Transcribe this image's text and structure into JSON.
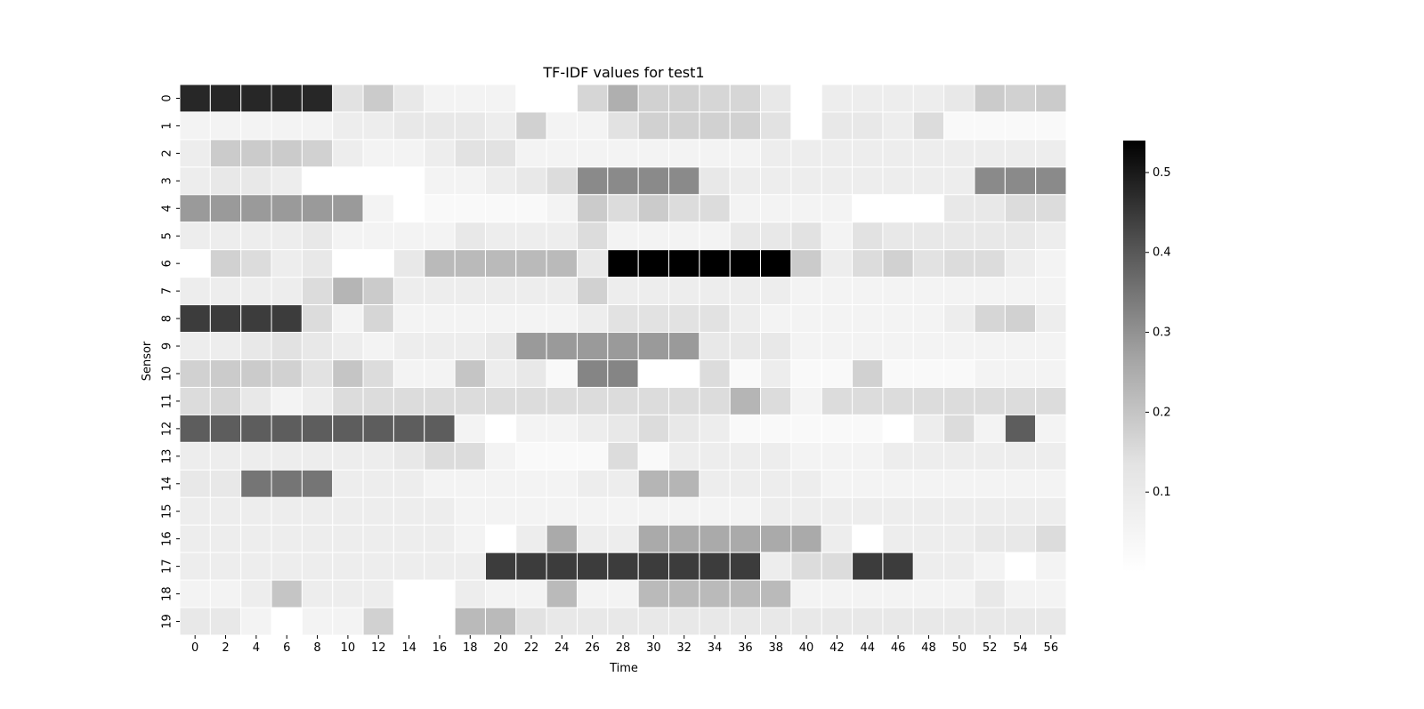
{
  "chart_data": {
    "type": "heatmap",
    "title": "TF-IDF values for test1",
    "xlabel": "Time",
    "ylabel": "Sensor",
    "x_tick_labels": [
      "0",
      "2",
      "4",
      "6",
      "8",
      "10",
      "12",
      "14",
      "16",
      "18",
      "20",
      "22",
      "24",
      "26",
      "28",
      "30",
      "32",
      "34",
      "36",
      "38",
      "40",
      "42",
      "44",
      "46",
      "48",
      "50",
      "52",
      "54",
      "56"
    ],
    "y_tick_labels": [
      "0",
      "1",
      "2",
      "3",
      "4",
      "5",
      "6",
      "7",
      "8",
      "9",
      "10",
      "11",
      "12",
      "13",
      "14",
      "15",
      "16",
      "17",
      "18",
      "19"
    ],
    "colorbar": {
      "range": [
        0.0,
        0.54
      ],
      "ticks": [
        0.1,
        0.2,
        0.3,
        0.4,
        0.5
      ],
      "tick_labels": [
        "0.1",
        "0.2",
        "0.3",
        "0.4",
        "0.5"
      ],
      "colormap": "Greys"
    },
    "cell_border_color": "#ffffff",
    "values": [
      [
        0.42,
        0.42,
        0.42,
        0.42,
        0.42,
        0.05,
        0.09,
        0.04,
        0.02,
        0.02,
        0.02,
        0.0,
        0.0,
        0.07,
        0.14,
        0.08,
        0.08,
        0.07,
        0.07,
        0.04,
        0.0,
        0.03,
        0.03,
        0.03,
        0.03,
        0.04,
        0.09,
        0.08,
        0.09
      ],
      [
        0.02,
        0.02,
        0.02,
        0.02,
        0.02,
        0.03,
        0.03,
        0.04,
        0.04,
        0.04,
        0.03,
        0.08,
        0.02,
        0.02,
        0.05,
        0.08,
        0.08,
        0.08,
        0.08,
        0.05,
        0.0,
        0.04,
        0.04,
        0.03,
        0.06,
        0.01,
        0.01,
        0.01,
        0.01
      ],
      [
        0.03,
        0.09,
        0.09,
        0.09,
        0.08,
        0.03,
        0.02,
        0.02,
        0.03,
        0.05,
        0.05,
        0.02,
        0.02,
        0.02,
        0.02,
        0.02,
        0.02,
        0.02,
        0.02,
        0.03,
        0.03,
        0.03,
        0.03,
        0.03,
        0.03,
        0.03,
        0.03,
        0.03,
        0.03
      ],
      [
        0.03,
        0.04,
        0.04,
        0.03,
        0.0,
        0.0,
        0.0,
        0.0,
        0.02,
        0.02,
        0.03,
        0.04,
        0.06,
        0.21,
        0.21,
        0.21,
        0.21,
        0.04,
        0.03,
        0.03,
        0.03,
        0.03,
        0.03,
        0.03,
        0.03,
        0.03,
        0.21,
        0.21,
        0.21
      ],
      [
        0.18,
        0.18,
        0.18,
        0.18,
        0.18,
        0.18,
        0.02,
        0.0,
        0.01,
        0.01,
        0.01,
        0.01,
        0.02,
        0.09,
        0.06,
        0.09,
        0.06,
        0.06,
        0.02,
        0.02,
        0.02,
        0.02,
        0.0,
        0.0,
        0.0,
        0.04,
        0.04,
        0.06,
        0.06
      ],
      [
        0.03,
        0.03,
        0.03,
        0.03,
        0.04,
        0.02,
        0.02,
        0.02,
        0.02,
        0.04,
        0.03,
        0.03,
        0.03,
        0.06,
        0.02,
        0.02,
        0.02,
        0.02,
        0.04,
        0.04,
        0.05,
        0.02,
        0.05,
        0.04,
        0.04,
        0.04,
        0.04,
        0.04,
        0.03
      ],
      [
        0.0,
        0.08,
        0.06,
        0.03,
        0.04,
        0.0,
        0.0,
        0.04,
        0.12,
        0.12,
        0.12,
        0.12,
        0.12,
        0.04,
        0.54,
        0.54,
        0.54,
        0.54,
        0.54,
        0.54,
        0.09,
        0.03,
        0.06,
        0.08,
        0.05,
        0.06,
        0.06,
        0.03,
        0.02
      ],
      [
        0.03,
        0.03,
        0.03,
        0.03,
        0.06,
        0.13,
        0.09,
        0.03,
        0.03,
        0.03,
        0.03,
        0.03,
        0.03,
        0.08,
        0.03,
        0.03,
        0.03,
        0.03,
        0.03,
        0.03,
        0.02,
        0.02,
        0.02,
        0.02,
        0.02,
        0.02,
        0.02,
        0.02,
        0.02
      ],
      [
        0.37,
        0.37,
        0.37,
        0.37,
        0.06,
        0.02,
        0.07,
        0.02,
        0.02,
        0.02,
        0.02,
        0.02,
        0.02,
        0.03,
        0.05,
        0.05,
        0.05,
        0.05,
        0.03,
        0.02,
        0.02,
        0.02,
        0.02,
        0.02,
        0.02,
        0.03,
        0.07,
        0.08,
        0.03
      ],
      [
        0.03,
        0.03,
        0.04,
        0.05,
        0.04,
        0.03,
        0.02,
        0.03,
        0.03,
        0.03,
        0.04,
        0.18,
        0.18,
        0.18,
        0.18,
        0.18,
        0.18,
        0.04,
        0.04,
        0.04,
        0.02,
        0.02,
        0.02,
        0.02,
        0.02,
        0.02,
        0.02,
        0.02,
        0.02
      ],
      [
        0.08,
        0.09,
        0.09,
        0.08,
        0.05,
        0.1,
        0.06,
        0.02,
        0.02,
        0.1,
        0.03,
        0.04,
        0.01,
        0.22,
        0.22,
        0.0,
        0.0,
        0.06,
        0.01,
        0.03,
        0.01,
        0.01,
        0.08,
        0.01,
        0.01,
        0.01,
        0.02,
        0.02,
        0.02
      ],
      [
        0.06,
        0.07,
        0.04,
        0.02,
        0.03,
        0.06,
        0.06,
        0.06,
        0.06,
        0.06,
        0.06,
        0.06,
        0.06,
        0.06,
        0.06,
        0.06,
        0.06,
        0.06,
        0.13,
        0.06,
        0.02,
        0.06,
        0.06,
        0.06,
        0.06,
        0.06,
        0.06,
        0.06,
        0.06
      ],
      [
        0.3,
        0.3,
        0.3,
        0.3,
        0.3,
        0.3,
        0.3,
        0.3,
        0.3,
        0.02,
        0.0,
        0.02,
        0.02,
        0.03,
        0.04,
        0.06,
        0.04,
        0.03,
        0.01,
        0.01,
        0.01,
        0.01,
        0.01,
        0.0,
        0.03,
        0.06,
        0.02,
        0.3,
        0.02
      ],
      [
        0.03,
        0.03,
        0.03,
        0.03,
        0.03,
        0.03,
        0.03,
        0.04,
        0.06,
        0.06,
        0.02,
        0.01,
        0.01,
        0.01,
        0.06,
        0.01,
        0.03,
        0.03,
        0.03,
        0.03,
        0.02,
        0.02,
        0.02,
        0.03,
        0.03,
        0.03,
        0.03,
        0.03,
        0.03
      ],
      [
        0.04,
        0.04,
        0.25,
        0.25,
        0.25,
        0.03,
        0.03,
        0.03,
        0.02,
        0.02,
        0.02,
        0.02,
        0.02,
        0.03,
        0.03,
        0.13,
        0.13,
        0.03,
        0.03,
        0.03,
        0.03,
        0.02,
        0.02,
        0.02,
        0.02,
        0.02,
        0.02,
        0.02,
        0.02
      ],
      [
        0.03,
        0.03,
        0.03,
        0.03,
        0.03,
        0.03,
        0.03,
        0.03,
        0.03,
        0.02,
        0.02,
        0.02,
        0.02,
        0.02,
        0.02,
        0.02,
        0.02,
        0.02,
        0.02,
        0.03,
        0.03,
        0.03,
        0.03,
        0.03,
        0.03,
        0.03,
        0.03,
        0.03,
        0.03
      ],
      [
        0.03,
        0.03,
        0.03,
        0.03,
        0.03,
        0.03,
        0.03,
        0.03,
        0.03,
        0.02,
        0.0,
        0.03,
        0.15,
        0.03,
        0.03,
        0.15,
        0.15,
        0.15,
        0.15,
        0.15,
        0.15,
        0.03,
        0.0,
        0.03,
        0.03,
        0.03,
        0.04,
        0.04,
        0.06
      ],
      [
        0.03,
        0.03,
        0.03,
        0.03,
        0.03,
        0.03,
        0.03,
        0.03,
        0.03,
        0.03,
        0.37,
        0.37,
        0.37,
        0.37,
        0.37,
        0.37,
        0.37,
        0.37,
        0.37,
        0.03,
        0.06,
        0.06,
        0.37,
        0.37,
        0.03,
        0.03,
        0.02,
        0.0,
        0.02
      ],
      [
        0.02,
        0.02,
        0.03,
        0.1,
        0.03,
        0.03,
        0.03,
        0.0,
        0.0,
        0.03,
        0.02,
        0.02,
        0.12,
        0.02,
        0.02,
        0.12,
        0.12,
        0.12,
        0.12,
        0.12,
        0.02,
        0.02,
        0.02,
        0.02,
        0.02,
        0.02,
        0.04,
        0.02,
        0.02
      ],
      [
        0.04,
        0.04,
        0.02,
        0.0,
        0.02,
        0.02,
        0.08,
        0.0,
        0.0,
        0.12,
        0.12,
        0.05,
        0.04,
        0.04,
        0.04,
        0.04,
        0.04,
        0.04,
        0.04,
        0.04,
        0.04,
        0.04,
        0.04,
        0.04,
        0.04,
        0.04,
        0.04,
        0.04,
        0.04
      ]
    ]
  }
}
